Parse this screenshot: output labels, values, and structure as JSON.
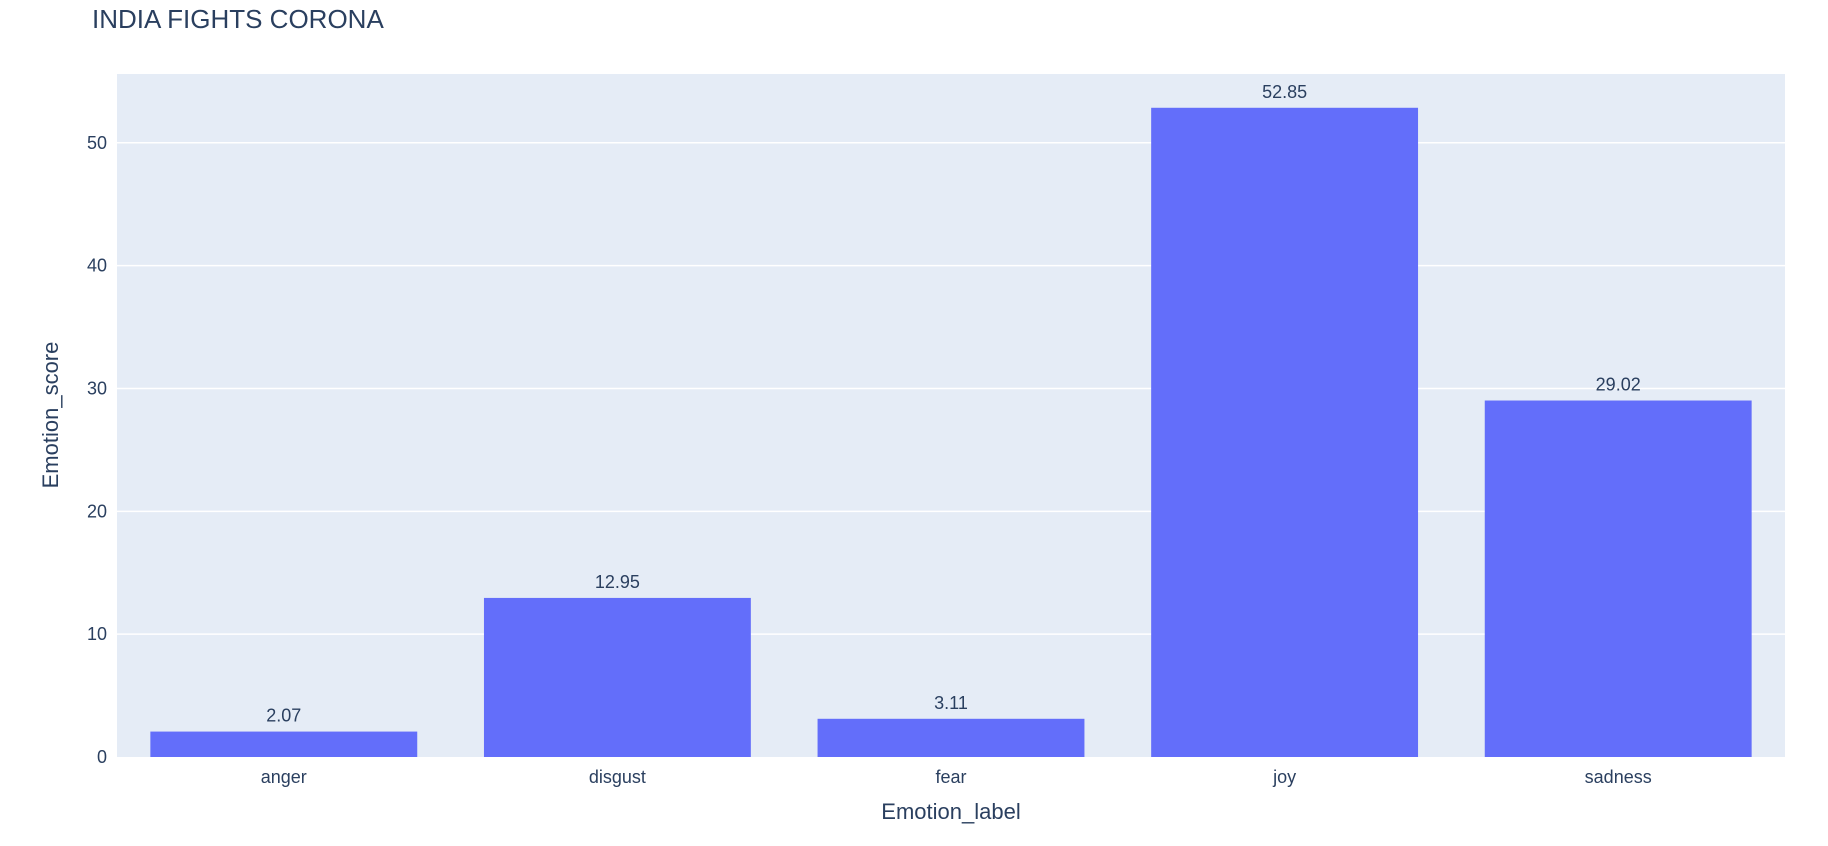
{
  "chart_data": {
    "type": "bar",
    "title": "INDIA FIGHTS CORONA",
    "xlabel": "Emotion_label",
    "ylabel": "Emotion_score",
    "categories": [
      "anger",
      "disgust",
      "fear",
      "joy",
      "sadness"
    ],
    "values": [
      2.07,
      12.95,
      3.11,
      52.85,
      29.02
    ],
    "data_labels": [
      "2.07",
      "12.95",
      "3.11",
      "52.85",
      "29.02"
    ],
    "ylim": [
      0,
      55.6
    ],
    "yticks": [
      0,
      10,
      20,
      30,
      40,
      50
    ],
    "grid": true,
    "colors": {
      "bar": "#636efa",
      "plot_bg": "#e5ecf6",
      "grid": "#ffffff",
      "text": "#2a3f5f"
    }
  }
}
